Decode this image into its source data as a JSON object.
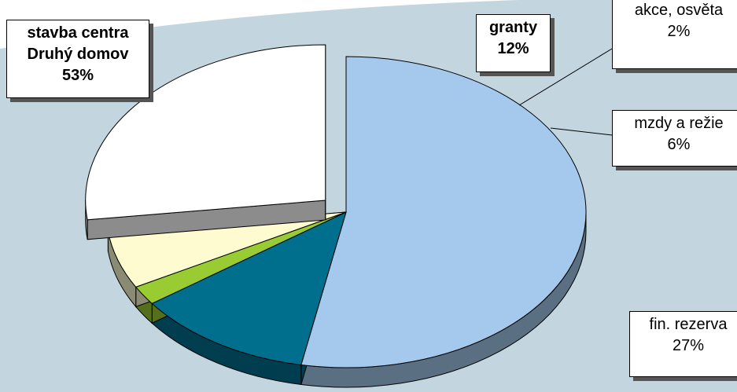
{
  "chart_data": {
    "type": "pie",
    "categories": [
      "stavba centra Druhý domov",
      "granty",
      "akce, osvěta",
      "mzdy a režie",
      "fin. rezerva"
    ],
    "values": [
      53,
      12,
      2,
      6,
      27
    ],
    "value_labels": [
      "53%",
      "12%",
      "2%",
      "6%",
      "27%"
    ],
    "colors": [
      "#a4c9ed",
      "#006f8d",
      "#99cc33",
      "#fdfbcf",
      "#ffffff"
    ],
    "start_angle": 0,
    "direction": "clockwise",
    "exploded": [
      4
    ]
  }
}
